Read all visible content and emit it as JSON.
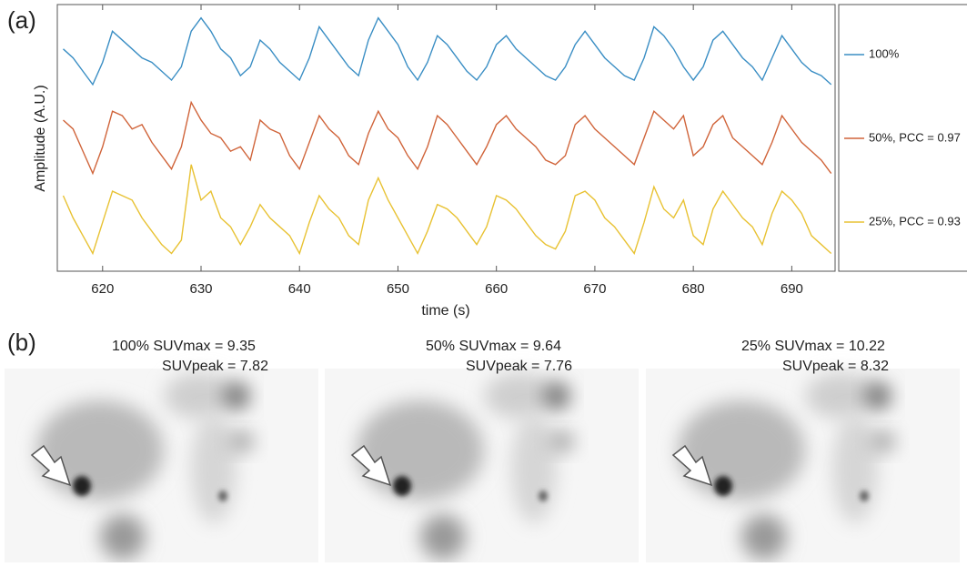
{
  "panel_labels": [
    "(a)",
    "(b)"
  ],
  "chart_data": {
    "type": "line",
    "xlabel": "time (s)",
    "ylabel": "Amplitude (A.U.)",
    "x": [
      616,
      617,
      618,
      619,
      620,
      621,
      622,
      623,
      624,
      625,
      626,
      627,
      628,
      629,
      630,
      631,
      632,
      633,
      634,
      635,
      636,
      637,
      638,
      639,
      640,
      641,
      642,
      643,
      644,
      645,
      646,
      647,
      648,
      649,
      650,
      651,
      652,
      653,
      654,
      655,
      656,
      657,
      658,
      659,
      660,
      661,
      662,
      663,
      664,
      665,
      666,
      667,
      668,
      669,
      670,
      671,
      672,
      673,
      674,
      675,
      676,
      677,
      678,
      679,
      680,
      681,
      682,
      683,
      684,
      685,
      686,
      687,
      688,
      689,
      690,
      691,
      692,
      693,
      694
    ],
    "series": [
      {
        "name": "100%",
        "color": "#3a8ec4",
        "values": [
          25,
          24,
          22.5,
          21,
          23.5,
          27,
          26,
          25,
          24,
          23.5,
          22.5,
          21.5,
          23,
          27,
          28.5,
          27,
          25,
          24,
          22,
          23,
          26,
          25,
          23.5,
          22.5,
          21.5,
          24,
          27.5,
          26,
          24.5,
          23,
          22,
          26,
          28.5,
          27,
          25.5,
          23,
          21.5,
          23.5,
          26.5,
          25.5,
          24,
          22.5,
          21.5,
          23,
          25.5,
          26.5,
          25,
          24,
          23,
          22,
          21.5,
          23,
          25.5,
          27,
          25.5,
          24,
          23,
          22,
          21.5,
          24,
          27.5,
          26.5,
          25,
          23,
          21.5,
          23,
          26,
          27,
          25.5,
          24,
          23,
          21.5,
          24,
          26.5,
          25,
          23.5,
          22.5,
          22,
          21
        ]
      },
      {
        "name": "50%, PCC = 0.97",
        "color": "#d0643a",
        "values": [
          17,
          16,
          13.5,
          11,
          14,
          18,
          17.5,
          16,
          16.5,
          14.5,
          13,
          11.5,
          14,
          19,
          17,
          15.5,
          15,
          13.5,
          14,
          12.5,
          17,
          16,
          15.5,
          13,
          11.5,
          14.5,
          17.5,
          16,
          15,
          13,
          12,
          15.5,
          18,
          16,
          15,
          13,
          11.5,
          14,
          17.5,
          16.5,
          15,
          13.5,
          12,
          14,
          16.5,
          17.5,
          16,
          15,
          14,
          12.5,
          12,
          13,
          16.5,
          17.5,
          16,
          15,
          14,
          13,
          12,
          15,
          18,
          17,
          16,
          17.5,
          13,
          14,
          16.5,
          17.5,
          15,
          14,
          13,
          12,
          14.5,
          17.5,
          16,
          14.5,
          13.5,
          12.5,
          11
        ]
      },
      {
        "name": "25%, PCC = 0.93",
        "color": "#e8c233",
        "values": [
          8.5,
          6,
          4,
          2,
          5.5,
          9,
          8.5,
          8,
          6,
          4.5,
          3,
          2,
          3.5,
          12,
          8,
          9,
          6,
          5,
          3,
          5,
          7.5,
          6,
          5,
          4,
          2,
          5.5,
          8.5,
          7,
          6,
          4,
          3,
          8,
          10.5,
          8,
          6,
          4,
          2,
          4.5,
          7.5,
          7,
          6,
          4.5,
          3,
          5,
          8.5,
          8,
          7,
          5.5,
          4,
          3,
          2.5,
          4.5,
          8.5,
          9,
          8,
          6,
          5,
          3.5,
          2,
          5.5,
          9.5,
          7,
          6,
          8,
          4,
          3,
          7,
          9,
          7.5,
          6,
          5,
          3,
          6.5,
          9,
          8,
          6.5,
          4,
          3,
          2
        ]
      }
    ],
    "xlim": [
      615.4,
      694.4
    ],
    "xticks": [
      620,
      630,
      640,
      650,
      660,
      670,
      680,
      690
    ],
    "ylim": [
      0,
      30
    ]
  },
  "panel_b": {
    "images": [
      {
        "header": "100%   SUVmax  = 9.35",
        "subheader": "SUVpeak = 7.82"
      },
      {
        "header": "50%   SUVmax  = 9.64",
        "subheader": "SUVpeak = 7.76"
      },
      {
        "header": "25%   SUVmax  = 10.22",
        "subheader": "SUVpeak =  8.32"
      }
    ]
  }
}
